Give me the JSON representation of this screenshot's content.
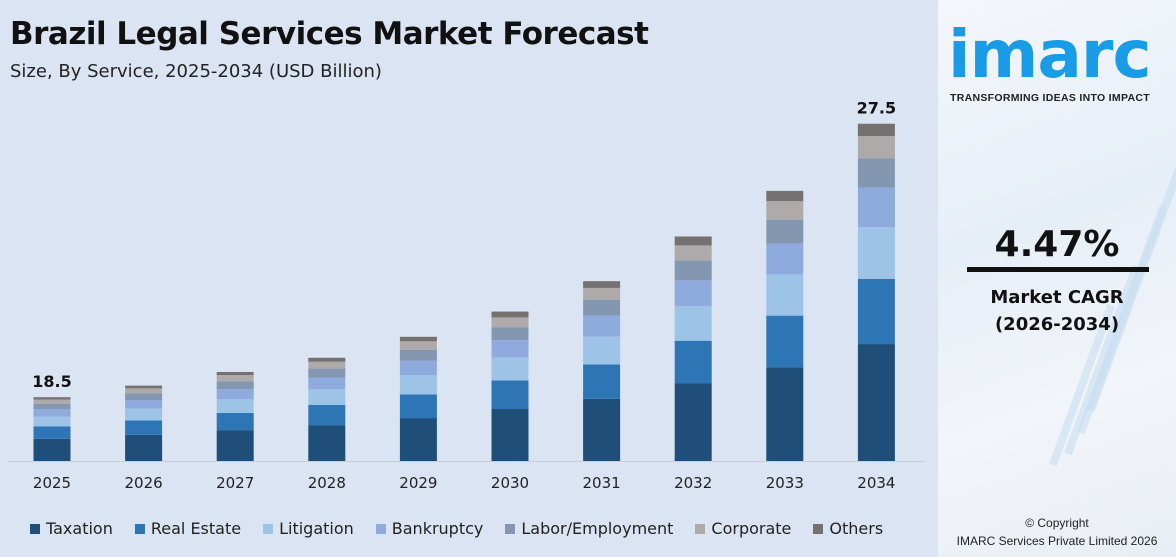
{
  "header": {
    "title": "Brazil Legal Services Market Forecast",
    "subtitle": "Size, By Service, 2025-2034 (USD Billion)"
  },
  "brand": {
    "logo": "imarc",
    "tagline": "TRANSFORMING IDEAS INTO IMPACT",
    "color": "#1a9be6"
  },
  "cagr": {
    "value": "4.47%",
    "label": "Market CAGR",
    "period": "(2026-2034)"
  },
  "footer": {
    "copyright": "© Copyright",
    "company": "IMARC Services Private Limited 2026"
  },
  "chart_data": {
    "type": "stacked-bar",
    "title": "Brazil Legal Services Market Forecast",
    "subtitle": "Size, By Service, 2025-2034 (USD Billion)",
    "categories": [
      "2025",
      "2026",
      "2027",
      "2028",
      "2029",
      "2030",
      "2031",
      "2032",
      "2033",
      "2034"
    ],
    "data_labels": {
      "2025": "18.5",
      "2034": "27.5"
    },
    "legend_position": "bottom",
    "grid": false,
    "series": [
      {
        "name": "Taxation",
        "color": "#1f4e79",
        "values": [
          6.4,
          6.7,
          7.0,
          7.3,
          7.6,
          8.0,
          8.3,
          8.7,
          9.1,
          9.5
        ]
      },
      {
        "name": "Real Estate",
        "color": "#2e75b6",
        "values": [
          3.6,
          3.7,
          3.9,
          4.1,
          4.2,
          4.4,
          4.6,
          4.8,
          5.0,
          5.3
        ]
      },
      {
        "name": "Litigation",
        "color": "#9dc3e6",
        "values": [
          2.8,
          3.0,
          3.1,
          3.2,
          3.4,
          3.5,
          3.7,
          3.9,
          4.0,
          4.2
        ]
      },
      {
        "name": "Bankruptcy",
        "color": "#8faadc",
        "values": [
          2.1,
          2.2,
          2.3,
          2.4,
          2.6,
          2.7,
          2.8,
          2.9,
          3.0,
          3.2
        ]
      },
      {
        "name": "Labor/Employment",
        "color": "#8497b0",
        "values": [
          1.6,
          1.7,
          1.8,
          1.8,
          1.9,
          2.0,
          2.1,
          2.2,
          2.3,
          2.4
        ]
      },
      {
        "name": "Corporate",
        "color": "#aeaaaa",
        "values": [
          1.2,
          1.3,
          1.4,
          1.4,
          1.5,
          1.5,
          1.6,
          1.7,
          1.8,
          1.8
        ]
      },
      {
        "name": "Others",
        "color": "#767171",
        "values": [
          0.7,
          0.7,
          0.7,
          0.8,
          0.8,
          0.9,
          0.9,
          1.0,
          1.0,
          1.0
        ]
      }
    ]
  }
}
